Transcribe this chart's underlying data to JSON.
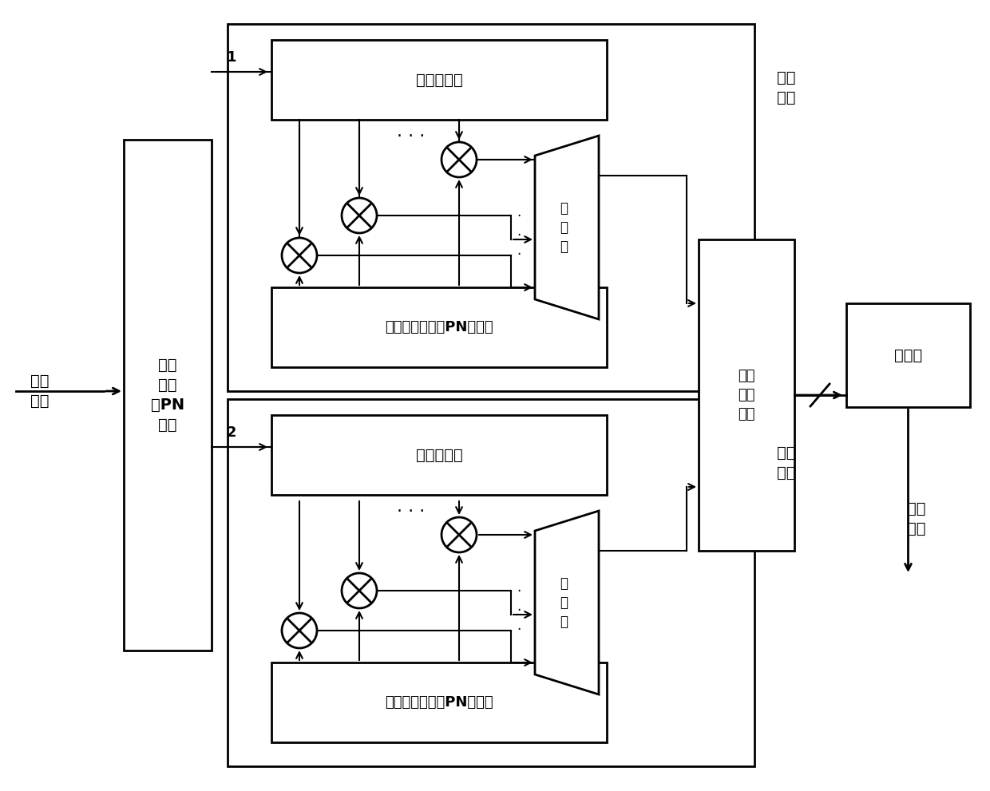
{
  "bg_color": "#ffffff",
  "figsize": [
    12.4,
    9.91
  ],
  "dpi": 100,
  "labels": {
    "input_data": "分离\n数据",
    "nested_pn": "嵌套\n性循\n环PN\n序列",
    "shift_reg": "移位寄存器",
    "memory": "存储器（原循环PN序列）",
    "accumulator": "累\n加\n器",
    "window_1": "第一\n窗口",
    "window_2": "第二\n窗口",
    "max_detector": "最大\n値检\n测器",
    "comparator": "比较器",
    "timing_sync": "定时\n同步",
    "label_1": "1",
    "label_2": "2",
    "dots": ". . ."
  },
  "lw": 2.0,
  "lw_thin": 1.5
}
